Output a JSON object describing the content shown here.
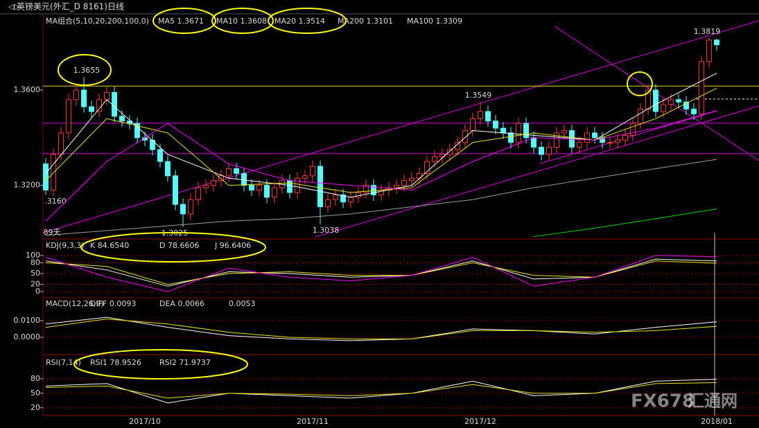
{
  "window_title": "英镑美元(外汇_D 8161)日线",
  "watermark": "FX678",
  "watermark_cn": "汇通网",
  "chart_data": [
    {
      "type": "candlestick",
      "title": "MA组合(5,10,20,200,100,0)",
      "categories": [
        null,
        null,
        null,
        null,
        null,
        null,
        null,
        null,
        null,
        null,
        null,
        null,
        null,
        "2017/10",
        null,
        null,
        null,
        null,
        null,
        null,
        null,
        null,
        null,
        null,
        null,
        null,
        null,
        null,
        null,
        null,
        null,
        null,
        null,
        null,
        null,
        "2017/11",
        null,
        null,
        null,
        null,
        null,
        null,
        null,
        null,
        null,
        null,
        null,
        null,
        null,
        null,
        null,
        null,
        null,
        null,
        null,
        null,
        null,
        "2017/12",
        null,
        null,
        null,
        null,
        null,
        null,
        null,
        null,
        null,
        null,
        null,
        null,
        null,
        null,
        null,
        null,
        null,
        null,
        null,
        null,
        null,
        null,
        null,
        null,
        null,
        null,
        null,
        null,
        null,
        null,
        "2018/01"
      ],
      "open": [
        1.329,
        1.318,
        1.333,
        1.342,
        1.356,
        1.36,
        1.353,
        1.351,
        1.356,
        1.359,
        1.349,
        1.347,
        1.346,
        1.34,
        1.339,
        1.335,
        1.33,
        1.324,
        1.312,
        1.308,
        1.314,
        1.319,
        1.32,
        1.322,
        1.324,
        1.327,
        1.325,
        1.32,
        1.318,
        1.32,
        1.315,
        1.319,
        1.322,
        1.317,
        1.323,
        1.324,
        1.328,
        1.311,
        1.314,
        1.316,
        1.313,
        1.315,
        1.317,
        1.32,
        1.316,
        1.318,
        1.319,
        1.32,
        1.322,
        1.323,
        1.325,
        1.33,
        1.332,
        1.333,
        1.335,
        1.338,
        1.343,
        1.348,
        1.351,
        1.347,
        1.344,
        1.342,
        1.338,
        1.346,
        1.34,
        1.336,
        1.333,
        1.336,
        1.342,
        1.343,
        1.336,
        1.338,
        1.342,
        1.34,
        1.338,
        1.338,
        1.339,
        1.341,
        1.346,
        1.352,
        1.36,
        1.351,
        1.354,
        1.356,
        1.355,
        1.352,
        1.35,
        1.372,
        1.381
      ],
      "high": [
        1.3315,
        1.3355,
        1.3445,
        1.3585,
        1.3625,
        1.3655,
        1.3555,
        1.3585,
        1.3615,
        1.3615,
        1.3515,
        1.3495,
        1.3485,
        1.3425,
        1.3415,
        1.3375,
        1.3325,
        1.3265,
        1.3145,
        1.3165,
        1.3215,
        1.3225,
        1.3245,
        1.3265,
        1.3295,
        1.3295,
        1.3275,
        1.3225,
        1.3225,
        1.3225,
        1.3215,
        1.3245,
        1.3245,
        1.3255,
        1.3265,
        1.3305,
        1.3305,
        1.3165,
        1.3185,
        1.3185,
        1.3175,
        1.3195,
        1.3225,
        1.3225,
        1.3205,
        1.3215,
        1.3225,
        1.3245,
        1.3255,
        1.3275,
        1.3325,
        1.3345,
        1.3355,
        1.3375,
        1.3405,
        1.3455,
        1.3505,
        1.3549,
        1.3535,
        1.3495,
        1.3465,
        1.3445,
        1.3485,
        1.3485,
        1.3425,
        1.3385,
        1.3385,
        1.3445,
        1.3455,
        1.3455,
        1.3405,
        1.3445,
        1.3445,
        1.3425,
        1.3405,
        1.3415,
        1.3435,
        1.3485,
        1.3545,
        1.3625,
        1.3625,
        1.3565,
        1.3585,
        1.3585,
        1.3575,
        1.3545,
        1.3745,
        1.3819,
        1.3815
      ],
      "low": [
        1.316,
        1.3155,
        1.3305,
        1.3395,
        1.3535,
        1.3505,
        1.3485,
        1.3485,
        1.3535,
        1.3465,
        1.3445,
        1.3435,
        1.3375,
        1.3365,
        1.3325,
        1.3275,
        1.3215,
        1.3095,
        1.3025,
        1.3055,
        1.3115,
        1.3165,
        1.3175,
        1.3195,
        1.3215,
        1.3225,
        1.3175,
        1.3155,
        1.3155,
        1.3125,
        1.3125,
        1.3165,
        1.3145,
        1.3145,
        1.3205,
        1.3215,
        1.3038,
        1.3085,
        1.3115,
        1.3105,
        1.3105,
        1.3125,
        1.3145,
        1.3135,
        1.3135,
        1.3155,
        1.3165,
        1.3175,
        1.3195,
        1.3205,
        1.3225,
        1.3275,
        1.3295,
        1.3305,
        1.3325,
        1.3355,
        1.3405,
        1.3455,
        1.3445,
        1.3415,
        1.3395,
        1.3355,
        1.3355,
        1.3375,
        1.3335,
        1.3305,
        1.3305,
        1.3335,
        1.3395,
        1.3335,
        1.3335,
        1.3355,
        1.3375,
        1.3355,
        1.3355,
        1.3355,
        1.3365,
        1.3385,
        1.3435,
        1.3495,
        1.3485,
        1.3485,
        1.3515,
        1.3525,
        1.3495,
        1.3475,
        1.3475,
        1.3695,
        1.3765
      ],
      "close": [
        1.318,
        1.333,
        1.342,
        1.356,
        1.36,
        1.353,
        1.351,
        1.356,
        1.359,
        1.349,
        1.347,
        1.346,
        1.34,
        1.339,
        1.335,
        1.33,
        1.324,
        1.312,
        1.308,
        1.314,
        1.319,
        1.32,
        1.322,
        1.324,
        1.327,
        1.325,
        1.32,
        1.318,
        1.32,
        1.315,
        1.319,
        1.322,
        1.317,
        1.323,
        1.324,
        1.328,
        1.311,
        1.314,
        1.316,
        1.313,
        1.315,
        1.317,
        1.32,
        1.316,
        1.318,
        1.319,
        1.32,
        1.322,
        1.323,
        1.325,
        1.33,
        1.332,
        1.333,
        1.335,
        1.338,
        1.343,
        1.348,
        1.351,
        1.347,
        1.344,
        1.342,
        1.338,
        1.346,
        1.34,
        1.336,
        1.333,
        1.336,
        1.342,
        1.343,
        1.336,
        1.338,
        1.342,
        1.34,
        1.338,
        1.338,
        1.339,
        1.341,
        1.346,
        1.352,
        1.36,
        1.351,
        1.354,
        1.356,
        1.355,
        1.352,
        1.35,
        1.372,
        1.381,
        1.379
      ],
      "up_color": "#ff3c3c",
      "down_color": "#54ffff",
      "ylim": [
        1.2975,
        1.392
      ],
      "yticks": [
        {
          "value": 1.32,
          "label": "1.3200"
        },
        {
          "value": 1.36,
          "label": "1.3600"
        }
      ],
      "levels": [
        {
          "value": 1.3617,
          "color": "#e0e000"
        },
        {
          "value": 1.3461,
          "color": "#e000e0"
        },
        {
          "value": 1.3333,
          "color": "#e000e0"
        }
      ],
      "x": [
        0,
        8,
        16,
        24,
        32,
        40,
        48,
        56,
        64,
        72,
        80,
        88
      ],
      "series": [
        {
          "name": "MA5",
          "label": "1.3671",
          "color": "#ffffff",
          "values": [
            1.325,
            1.356,
            1.333,
            1.323,
            1.32,
            1.315,
            1.32,
            1.343,
            1.341,
            1.339,
            1.354,
            1.3671
          ]
        },
        {
          "name": "MA10",
          "label": "1.3608",
          "color": "#e8e800",
          "values": [
            1.322,
            1.348,
            1.342,
            1.32,
            1.321,
            1.317,
            1.319,
            1.338,
            1.342,
            1.339,
            1.348,
            1.3608
          ]
        },
        {
          "name": "MA20",
          "label": "1.3514",
          "color": "#ff00ff",
          "values": [
            1.305,
            1.33,
            1.346,
            1.329,
            1.322,
            1.32,
            1.318,
            1.33,
            1.34,
            1.339,
            1.344,
            1.3514
          ]
        },
        {
          "name": "MA200",
          "label": "1.3101",
          "color": "#00e000",
          "values": [
            null,
            null,
            null,
            null,
            null,
            null,
            null,
            null,
            1.2985,
            1.302,
            1.306,
            1.3101
          ]
        },
        {
          "name": "MA100",
          "label": "1.3309",
          "color": "#a0a0a0",
          "values": [
            1.299,
            1.301,
            1.303,
            1.305,
            1.306,
            1.308,
            1.311,
            1.314,
            1.319,
            1.323,
            1.327,
            1.3309
          ]
        }
      ],
      "annotations": [
        {
          "text": "1.3655",
          "color": "#ff4040"
        },
        {
          "text": "1.3549",
          "color": "#ff4040"
        },
        {
          "text": "1.3819",
          "color": "#ff4040"
        },
        {
          "text": "1.3025",
          "color": "#54ffff"
        },
        {
          "text": "1.3038",
          "color": "#54ffff"
        },
        {
          "text": ".3160",
          "color": "#54ffff"
        },
        {
          "text": "89天",
          "color": "#e0a000"
        }
      ]
    },
    {
      "type": "line",
      "title": "KDJ(9,3,3)",
      "ylim": [
        -17,
        142
      ],
      "yticks": [
        0,
        20,
        50,
        80,
        100
      ],
      "series": [
        {
          "name": "K",
          "label": "84.6540",
          "color": "#ffffff",
          "values": [
            85,
            60,
            15,
            55,
            50,
            40,
            45,
            85,
            35,
            40,
            90,
            84.654
          ]
        },
        {
          "name": "D",
          "label": "78.6606",
          "color": "#e8e800",
          "values": [
            80,
            70,
            20,
            50,
            55,
            45,
            45,
            80,
            45,
            40,
            85,
            78.6606
          ]
        },
        {
          "name": "J",
          "label": "96.6406",
          "color": "#ff00ff",
          "values": [
            95,
            40,
            0,
            65,
            40,
            30,
            45,
            95,
            15,
            40,
            100,
            96.6406
          ]
        }
      ]
    },
    {
      "type": "line",
      "title": "MACD(12,26,9)",
      "value_text": "0.0053",
      "ylim": [
        -0.0104,
        0.0229
      ],
      "yticks": [
        {
          "value": 0,
          "label": "0.0000"
        },
        {
          "value": 0.01,
          "label": "0.0100"
        }
      ],
      "series": [
        {
          "name": "DIFF",
          "label": "0.0093",
          "color": "#ffffff",
          "values": [
            0.008,
            0.012,
            0.006,
            0.001,
            -0.001,
            -0.002,
            -0.001,
            0.005,
            0.004,
            0.002,
            0.006,
            0.0093
          ]
        },
        {
          "name": "DEA",
          "label": "0.0066",
          "color": "#e8e800",
          "values": [
            0.006,
            0.011,
            0.008,
            0.003,
            0,
            -0.001,
            -0.001,
            0.004,
            0.004,
            0.003,
            0.004,
            0.0066
          ]
        }
      ]
    },
    {
      "type": "line",
      "title": "RSI(7,14)",
      "ylim": [
        4,
        127
      ],
      "yticks": [
        20,
        50,
        80
      ],
      "series": [
        {
          "name": "RSI1",
          "label": "78.9526",
          "color": "#ffffff",
          "values": [
            65,
            70,
            30,
            50,
            45,
            40,
            50,
            75,
            45,
            50,
            75,
            78.9526
          ]
        },
        {
          "name": "RSI2",
          "label": "71.9737",
          "color": "#e8e800",
          "values": [
            62,
            65,
            40,
            50,
            48,
            45,
            50,
            68,
            50,
            50,
            70,
            71.9737
          ]
        }
      ]
    }
  ]
}
